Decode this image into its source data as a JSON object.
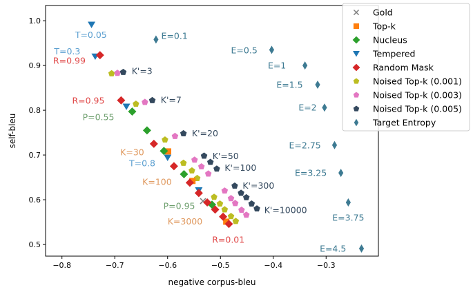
{
  "chart_data": {
    "type": "scatter",
    "xlabel": "negative corpus-bleu",
    "ylabel": "self-bleu",
    "xlim": [
      -0.831,
      -0.201
    ],
    "ylim": [
      0.474,
      1.034
    ],
    "xticks": [
      -0.8,
      -0.7,
      -0.6,
      -0.5,
      -0.4,
      -0.3
    ],
    "xtick_labels": [
      "−0.8",
      "−0.7",
      "−0.6",
      "−0.5",
      "−0.4",
      "−0.3"
    ],
    "yticks": [
      0.5,
      0.6,
      0.7,
      0.8,
      0.9,
      1.0
    ],
    "ytick_labels": [
      "0.5",
      "0.6",
      "0.7",
      "0.8",
      "0.9",
      "1.0"
    ],
    "grid": false,
    "legend_position": "top-right, outside",
    "series": [
      {
        "name": "Gold",
        "marker": "x",
        "color": "#7f7f7f",
        "points": [
          [
            -0.533,
            0.597
          ]
        ]
      },
      {
        "name": "Top-k",
        "marker": "square",
        "color": "#ff7f0e",
        "points": [
          [
            -0.599,
            0.708
          ],
          [
            -0.553,
            0.642
          ],
          [
            -0.489,
            0.551
          ]
        ]
      },
      {
        "name": "Nucleus",
        "marker": "diamond",
        "color": "#2ca02c",
        "points": [
          [
            -0.667,
            0.797
          ],
          [
            -0.639,
            0.755
          ],
          [
            -0.607,
            0.709
          ],
          [
            -0.569,
            0.657
          ],
          [
            -0.516,
            0.589
          ]
        ]
      },
      {
        "name": "Tempered",
        "marker": "triangle-down",
        "color": "#1f77b4",
        "points": [
          [
            -0.744,
            0.991
          ],
          [
            -0.737,
            0.92
          ],
          [
            -0.678,
            0.808
          ],
          [
            -0.6,
            0.694
          ],
          [
            -0.541,
            0.621
          ]
        ]
      },
      {
        "name": "Random Mask",
        "marker": "diamond",
        "color": "#d62728",
        "points": [
          [
            -0.728,
            0.923
          ],
          [
            -0.688,
            0.822
          ],
          [
            -0.626,
            0.725
          ],
          [
            -0.588,
            0.675
          ],
          [
            -0.558,
            0.638
          ],
          [
            -0.541,
            0.615
          ],
          [
            -0.525,
            0.594
          ],
          [
            -0.51,
            0.578
          ],
          [
            -0.495,
            0.562
          ],
          [
            -0.484,
            0.546
          ]
        ]
      },
      {
        "name": "Noised Top-k (0.001)",
        "marker": "pentagon",
        "color": "#bcbd22",
        "points": [
          [
            -0.706,
            0.882
          ],
          [
            -0.66,
            0.814
          ],
          [
            -0.605,
            0.734
          ],
          [
            -0.57,
            0.682
          ],
          [
            -0.554,
            0.665
          ],
          [
            -0.544,
            0.648
          ],
          [
            -0.512,
            0.606
          ],
          [
            -0.501,
            0.591
          ],
          [
            -0.492,
            0.578
          ],
          [
            -0.48,
            0.563
          ],
          [
            -0.471,
            0.552
          ]
        ]
      },
      {
        "name": "Noised Top-k (0.003)",
        "marker": "pentagon",
        "color": "#e377c2",
        "points": [
          [
            -0.695,
            0.883
          ],
          [
            -0.643,
            0.818
          ],
          [
            -0.586,
            0.742
          ],
          [
            -0.549,
            0.689
          ],
          [
            -0.536,
            0.674
          ],
          [
            -0.523,
            0.658
          ],
          [
            -0.492,
            0.62
          ],
          [
            -0.48,
            0.603
          ],
          [
            -0.472,
            0.592
          ],
          [
            -0.46,
            0.577
          ],
          [
            -0.451,
            0.566
          ]
        ]
      },
      {
        "name": "Noised Top-k (0.005)",
        "marker": "pentagon",
        "color": "#34495e",
        "points": [
          [
            -0.684,
            0.885
          ],
          [
            -0.629,
            0.822
          ],
          [
            -0.57,
            0.748
          ],
          [
            -0.531,
            0.698
          ],
          [
            -0.519,
            0.684
          ],
          [
            -0.507,
            0.669
          ],
          [
            -0.473,
            0.631
          ],
          [
            -0.461,
            0.615
          ],
          [
            -0.451,
            0.605
          ],
          [
            -0.441,
            0.591
          ],
          [
            -0.431,
            0.58
          ]
        ]
      },
      {
        "name": "Target Entropy",
        "marker": "thin-diamond",
        "color": "#3d7a92",
        "points": [
          [
            -0.622,
            0.958
          ],
          [
            -0.403,
            0.935
          ],
          [
            -0.34,
            0.9
          ],
          [
            -0.316,
            0.857
          ],
          [
            -0.303,
            0.806
          ],
          [
            -0.284,
            0.722
          ],
          [
            -0.272,
            0.66
          ],
          [
            -0.258,
            0.594
          ],
          [
            -0.233,
            0.491
          ]
        ]
      }
    ],
    "annotations": [
      {
        "text": "T=0.05",
        "x": -0.745,
        "y": 0.969,
        "color": "#5b9fd0",
        "anchor": "middle"
      },
      {
        "text": "T=0.3",
        "x": -0.79,
        "y": 0.932,
        "color": "#5b9fd0",
        "anchor": "middle"
      },
      {
        "text": "R=0.99",
        "x": -0.786,
        "y": 0.911,
        "color": "#e04848",
        "anchor": "middle"
      },
      {
        "text": "K'=3",
        "x": -0.668,
        "y": 0.888,
        "color": "#34495e",
        "anchor": "start"
      },
      {
        "text": "R=0.95",
        "x": -0.75,
        "y": 0.822,
        "color": "#e04848",
        "anchor": "middle"
      },
      {
        "text": "K'=7",
        "x": -0.613,
        "y": 0.823,
        "color": "#34495e",
        "anchor": "start"
      },
      {
        "text": "P=0.55",
        "x": -0.731,
        "y": 0.785,
        "color": "#6e9f6e",
        "anchor": "middle"
      },
      {
        "text": "E=0.1",
        "x": -0.612,
        "y": 0.966,
        "color": "#3d7a92",
        "anchor": "start"
      },
      {
        "text": "K'=20",
        "x": -0.554,
        "y": 0.749,
        "color": "#34495e",
        "anchor": "start"
      },
      {
        "text": "K=30",
        "x": -0.667,
        "y": 0.706,
        "color": "#e09a60",
        "anchor": "middle"
      },
      {
        "text": "T=0.8",
        "x": -0.648,
        "y": 0.682,
        "color": "#5b9fd0",
        "anchor": "middle"
      },
      {
        "text": "K'=50",
        "x": -0.515,
        "y": 0.698,
        "color": "#34495e",
        "anchor": "start"
      },
      {
        "text": "K'=100",
        "x": -0.492,
        "y": 0.672,
        "color": "#34495e",
        "anchor": "start"
      },
      {
        "text": "K=100",
        "x": -0.62,
        "y": 0.64,
        "color": "#e09a60",
        "anchor": "middle"
      },
      {
        "text": "K'=300",
        "x": -0.458,
        "y": 0.632,
        "color": "#34495e",
        "anchor": "start"
      },
      {
        "text": "P=0.95",
        "x": -0.578,
        "y": 0.586,
        "color": "#6e9f6e",
        "anchor": "middle"
      },
      {
        "text": "K'=10000",
        "x": -0.417,
        "y": 0.577,
        "color": "#34495e",
        "anchor": "start"
      },
      {
        "text": "K=3000",
        "x": -0.567,
        "y": 0.552,
        "color": "#e09a60",
        "anchor": "middle"
      },
      {
        "text": "R=0.01",
        "x": -0.485,
        "y": 0.511,
        "color": "#e04848",
        "anchor": "middle"
      },
      {
        "text": "E=0.5",
        "x": -0.455,
        "y": 0.934,
        "color": "#3d7a92",
        "anchor": "middle"
      },
      {
        "text": "E=1",
        "x": -0.393,
        "y": 0.9,
        "color": "#3d7a92",
        "anchor": "middle"
      },
      {
        "text": "E=1.5",
        "x": -0.369,
        "y": 0.857,
        "color": "#3d7a92",
        "anchor": "middle"
      },
      {
        "text": "E=2",
        "x": -0.335,
        "y": 0.806,
        "color": "#3d7a92",
        "anchor": "middle"
      },
      {
        "text": "E=2.75",
        "x": -0.34,
        "y": 0.722,
        "color": "#3d7a92",
        "anchor": "middle"
      },
      {
        "text": "E=3.25",
        "x": -0.329,
        "y": 0.66,
        "color": "#3d7a92",
        "anchor": "middle"
      },
      {
        "text": "E=3.75",
        "x": -0.258,
        "y": 0.56,
        "color": "#3d7a92",
        "anchor": "middle"
      },
      {
        "text": "E=4.5",
        "x": -0.287,
        "y": 0.491,
        "color": "#3d7a92",
        "anchor": "middle"
      }
    ]
  }
}
